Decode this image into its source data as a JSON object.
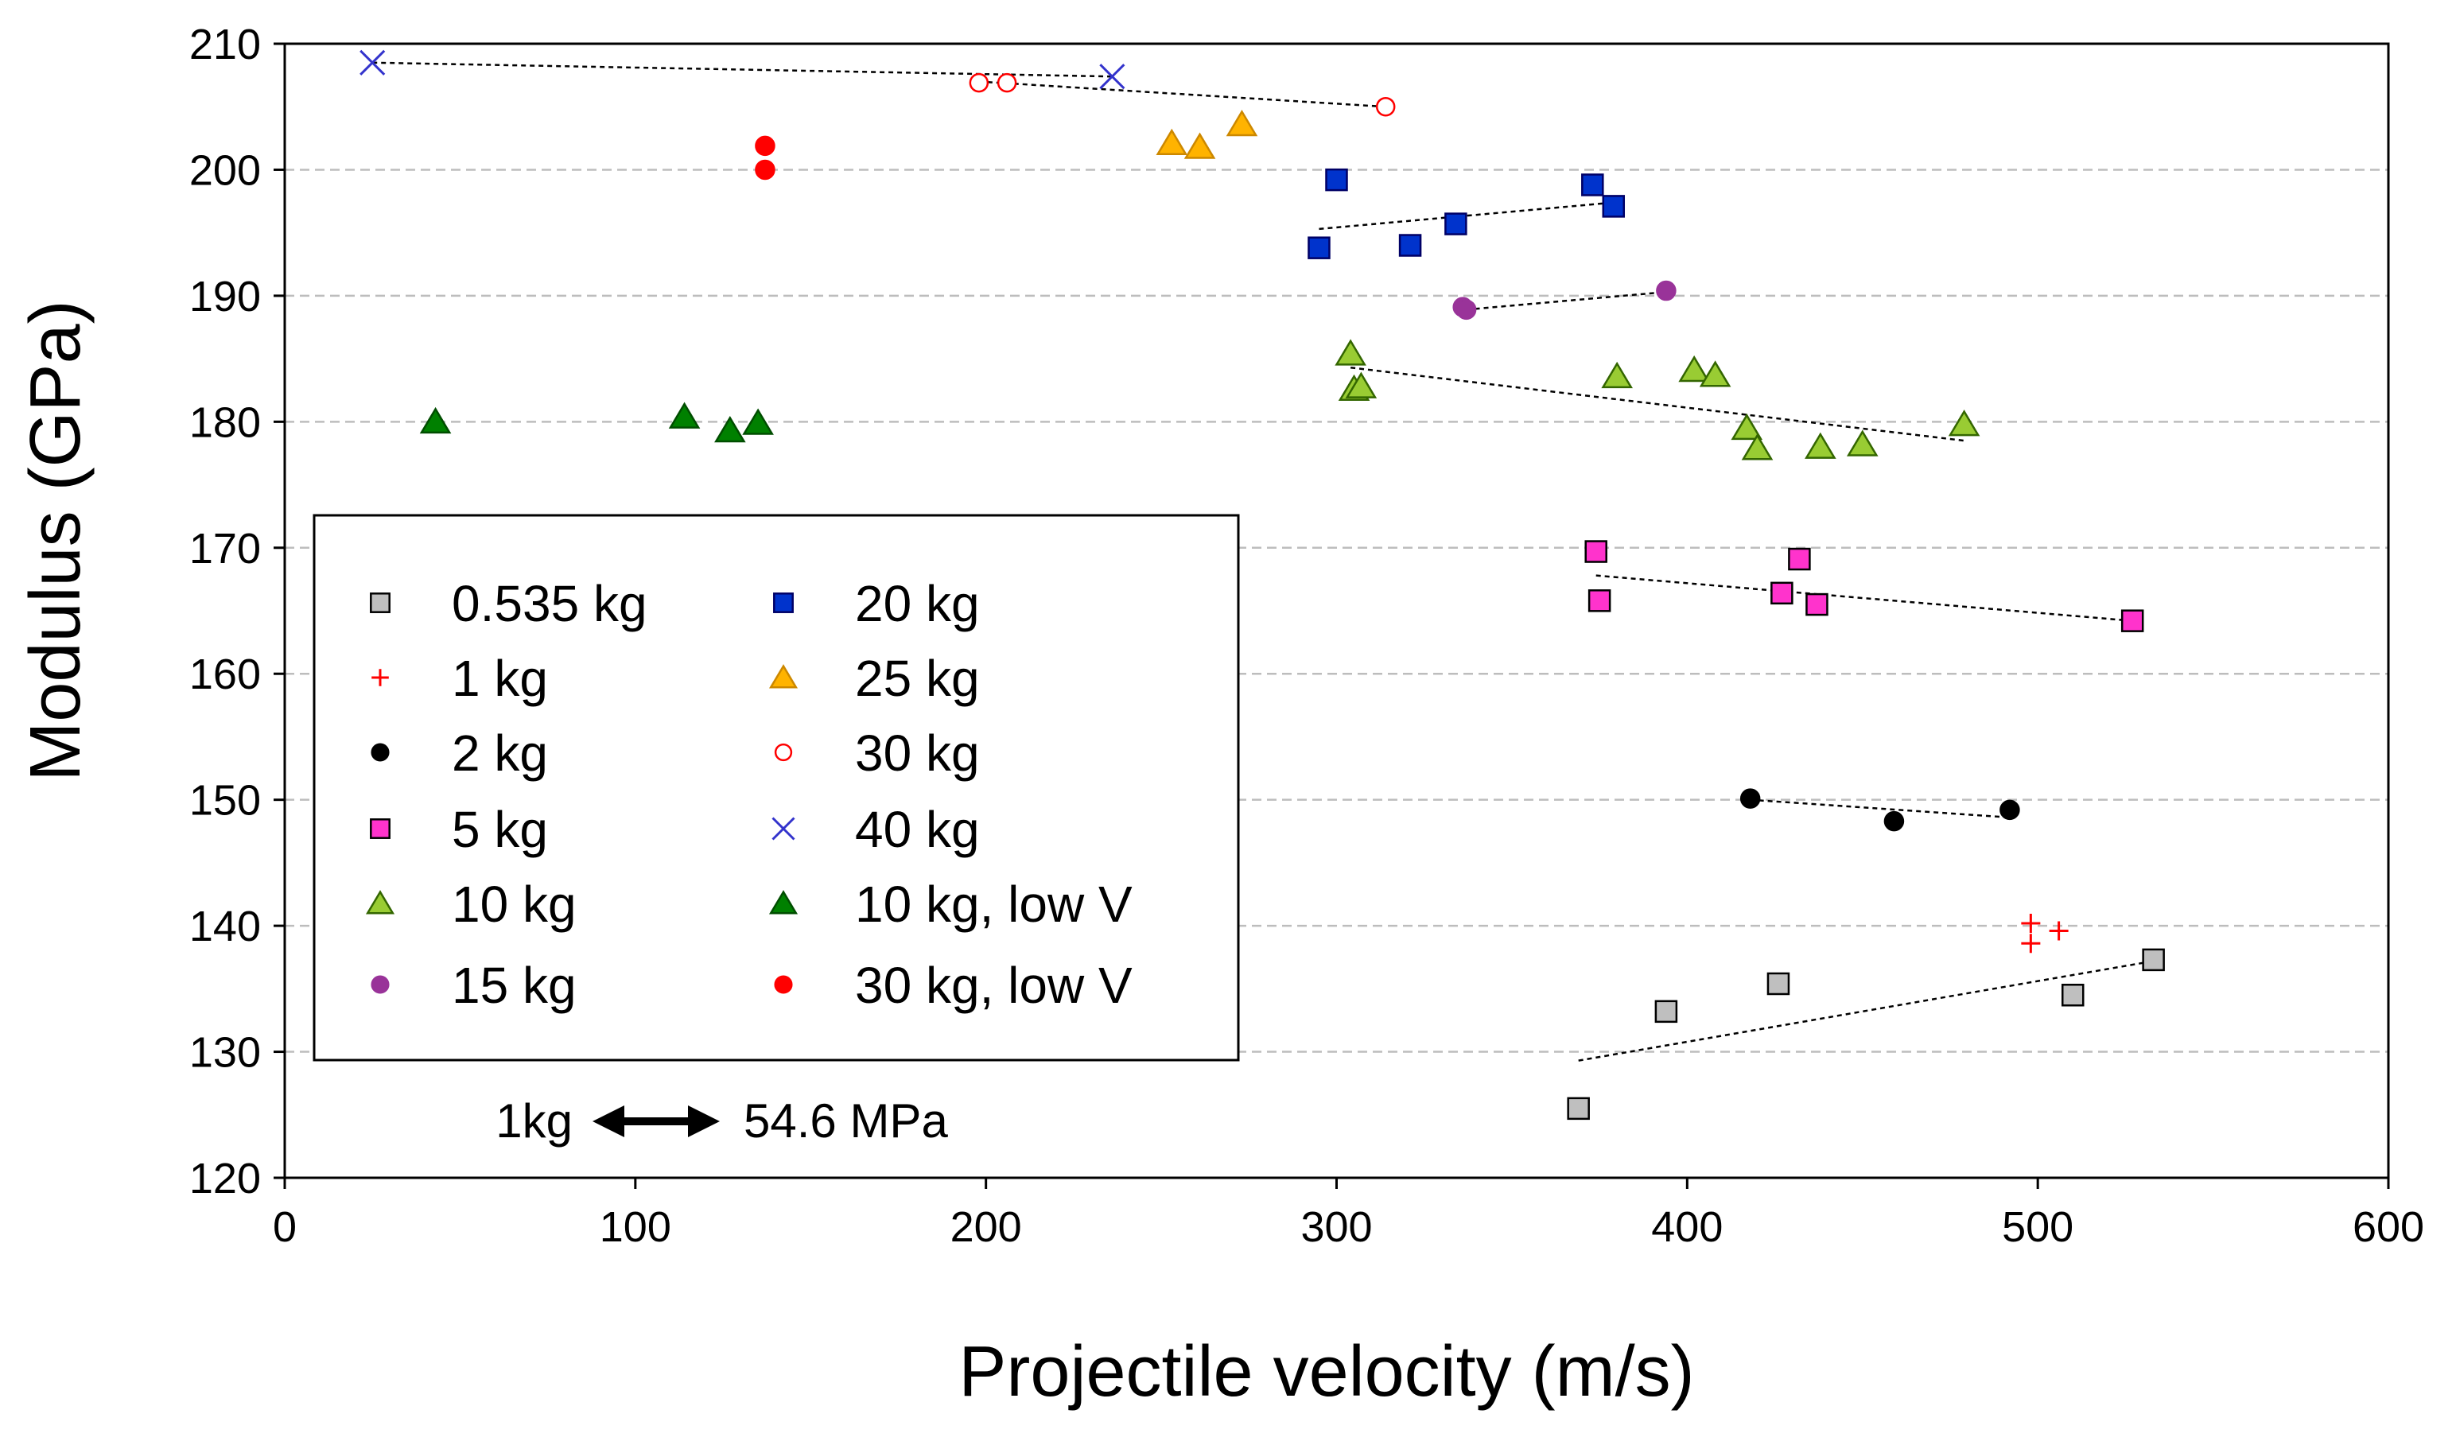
{
  "chart_data": {
    "type": "scatter",
    "title": "",
    "xlabel": "Projectile velocity (m/s)",
    "ylabel": "Modulus (GPa)",
    "xlim": [
      0,
      600
    ],
    "ylim": [
      120,
      210
    ],
    "xticks": [
      0,
      100,
      200,
      300,
      400,
      500,
      600
    ],
    "yticks": [
      120,
      130,
      140,
      150,
      160,
      170,
      180,
      190,
      200,
      210
    ],
    "grid": "horizontal dashed",
    "legend_placement": "lower-left",
    "annotation": {
      "left": "1kg",
      "right": "54.6 MPa"
    },
    "series": [
      {
        "name": "0.535 kg",
        "marker": "square",
        "color": "#bfbfbf",
        "stroke": "#000000",
        "points": [
          [
            369,
            125.5
          ],
          [
            394,
            133.2
          ],
          [
            426,
            135.4
          ],
          [
            510,
            134.5
          ],
          [
            533,
            137.3
          ]
        ],
        "trend": [
          [
            369,
            129.3
          ],
          [
            533,
            137.2
          ]
        ]
      },
      {
        "name": "1 kg",
        "marker": "plus",
        "color": "#ff0000",
        "stroke": "#ff0000",
        "points": [
          [
            498,
            140.2
          ],
          [
            498,
            138.6
          ],
          [
            506,
            139.6
          ]
        ],
        "trend": null
      },
      {
        "name": "2 kg",
        "marker": "dot",
        "color": "#000000",
        "stroke": "#000000",
        "points": [
          [
            418,
            150.1
          ],
          [
            459,
            148.3
          ],
          [
            492,
            149.2
          ]
        ],
        "trend": [
          [
            418,
            150.0
          ],
          [
            492,
            148.6
          ]
        ]
      },
      {
        "name": "5 kg",
        "marker": "square",
        "color": "#ff33cc",
        "stroke": "#000000",
        "points": [
          [
            374,
            169.7
          ],
          [
            375,
            165.8
          ],
          [
            427,
            166.4
          ],
          [
            432,
            169.1
          ],
          [
            437,
            165.5
          ],
          [
            527,
            164.2
          ]
        ],
        "trend": [
          [
            374,
            167.8
          ],
          [
            527,
            164.2
          ]
        ]
      },
      {
        "name": "10 kg",
        "marker": "triangle",
        "color": "#99cc33",
        "stroke": "#336600",
        "points": [
          [
            304,
            185.4
          ],
          [
            305,
            182.6
          ],
          [
            307,
            182.8
          ],
          [
            380,
            183.6
          ],
          [
            402,
            184.1
          ],
          [
            408,
            183.7
          ],
          [
            417,
            179.5
          ],
          [
            420,
            177.9
          ],
          [
            438,
            178.0
          ],
          [
            450,
            178.2
          ],
          [
            479,
            179.8
          ]
        ],
        "trend": [
          [
            304,
            184.3
          ],
          [
            479,
            178.5
          ]
        ]
      },
      {
        "name": "15 kg",
        "marker": "dot",
        "color": "#993399",
        "stroke": "#993399",
        "points": [
          [
            336,
            189.1
          ],
          [
            337,
            188.9
          ],
          [
            394,
            190.4
          ]
        ],
        "trend": [
          [
            337,
            188.9
          ],
          [
            394,
            190.3
          ]
        ]
      },
      {
        "name": "20 kg",
        "marker": "square",
        "color": "#0033cc",
        "stroke": "#000066",
        "points": [
          [
            300,
            199.2
          ],
          [
            295,
            193.8
          ],
          [
            321,
            194.0
          ],
          [
            334,
            195.7
          ],
          [
            373,
            198.8
          ],
          [
            379,
            197.1
          ]
        ],
        "trend": [
          [
            295,
            195.3
          ],
          [
            379,
            197.4
          ]
        ]
      },
      {
        "name": "25 kg",
        "marker": "triangle",
        "color": "#ffb300",
        "stroke": "#cc8800",
        "points": [
          [
            253,
            202.1
          ],
          [
            261,
            201.8
          ],
          [
            273,
            203.6
          ]
        ],
        "trend": null
      },
      {
        "name": "30 kg",
        "marker": "circle-open",
        "color": "#ffffff",
        "stroke": "#ff0000",
        "points": [
          [
            198,
            206.9
          ],
          [
            206,
            206.9
          ],
          [
            314,
            205.0
          ]
        ],
        "trend": [
          [
            198,
            207.0
          ],
          [
            314,
            205.0
          ]
        ]
      },
      {
        "name": "40 kg",
        "marker": "x",
        "color": "#3333cc",
        "stroke": "#3333cc",
        "points": [
          [
            25,
            208.5
          ],
          [
            236,
            207.4
          ]
        ],
        "trend": [
          [
            25,
            208.5
          ],
          [
            236,
            207.4
          ]
        ]
      },
      {
        "name": "10 kg, low V",
        "marker": "triangle",
        "color": "#008000",
        "stroke": "#004d00",
        "points": [
          [
            43,
            180.0
          ],
          [
            114,
            180.4
          ],
          [
            127,
            179.3
          ],
          [
            135,
            179.9
          ]
        ],
        "trend": null
      },
      {
        "name": "30 kg, low V",
        "marker": "dot",
        "color": "#ff0000",
        "stroke": "#ff0000",
        "points": [
          [
            137,
            201.9
          ],
          [
            137,
            200.0
          ]
        ],
        "trend": null
      }
    ]
  }
}
